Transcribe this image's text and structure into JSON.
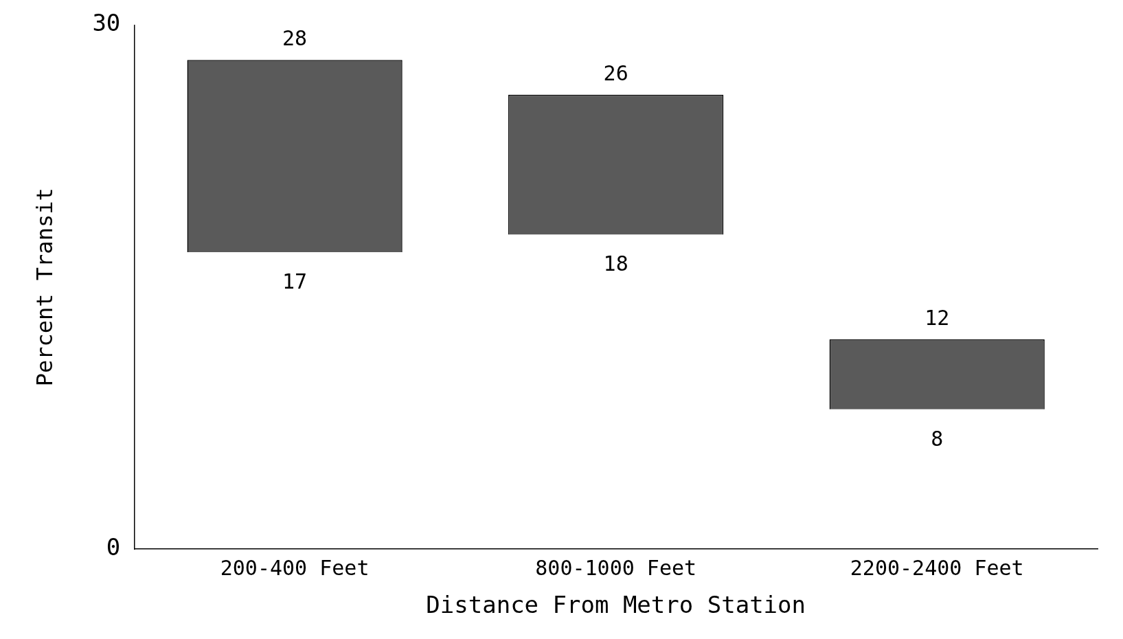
{
  "chart_data": {
    "type": "bar",
    "xlabel": "Distance From Metro Station",
    "ylabel": "Percent Transit",
    "categories": [
      "200-400 Feet",
      "800-1000 Feet",
      "2200-2400 Feet"
    ],
    "base": [
      17,
      18,
      8
    ],
    "values": [
      11,
      8,
      4
    ],
    "color": "#5a5a5a",
    "ylim": [
      0,
      30
    ],
    "yticks": [
      0,
      30
    ],
    "grid": false,
    "legend": false,
    "annotations": [
      {
        "text": "28",
        "x": "200-400 Feet",
        "y": 28
      },
      {
        "text": "17",
        "x": "200-400 Feet",
        "y": 17
      },
      {
        "text": "26",
        "x": "800-1000 Feet",
        "y": 26
      },
      {
        "text": "18",
        "x": "800-1000 Feet",
        "y": 18
      },
      {
        "text": "12",
        "x": "2200-2400 Feet",
        "y": 12
      },
      {
        "text": "8",
        "x": "2200-2400 Feet",
        "y": 8
      }
    ]
  }
}
